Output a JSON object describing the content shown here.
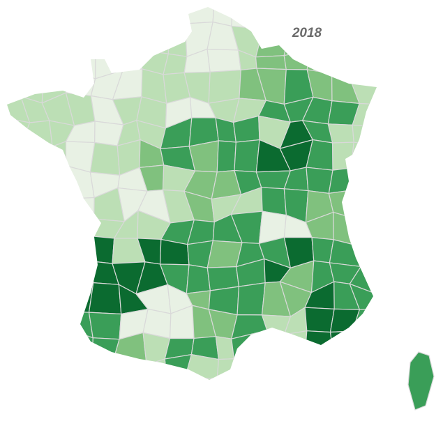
{
  "title": "2018"
}
